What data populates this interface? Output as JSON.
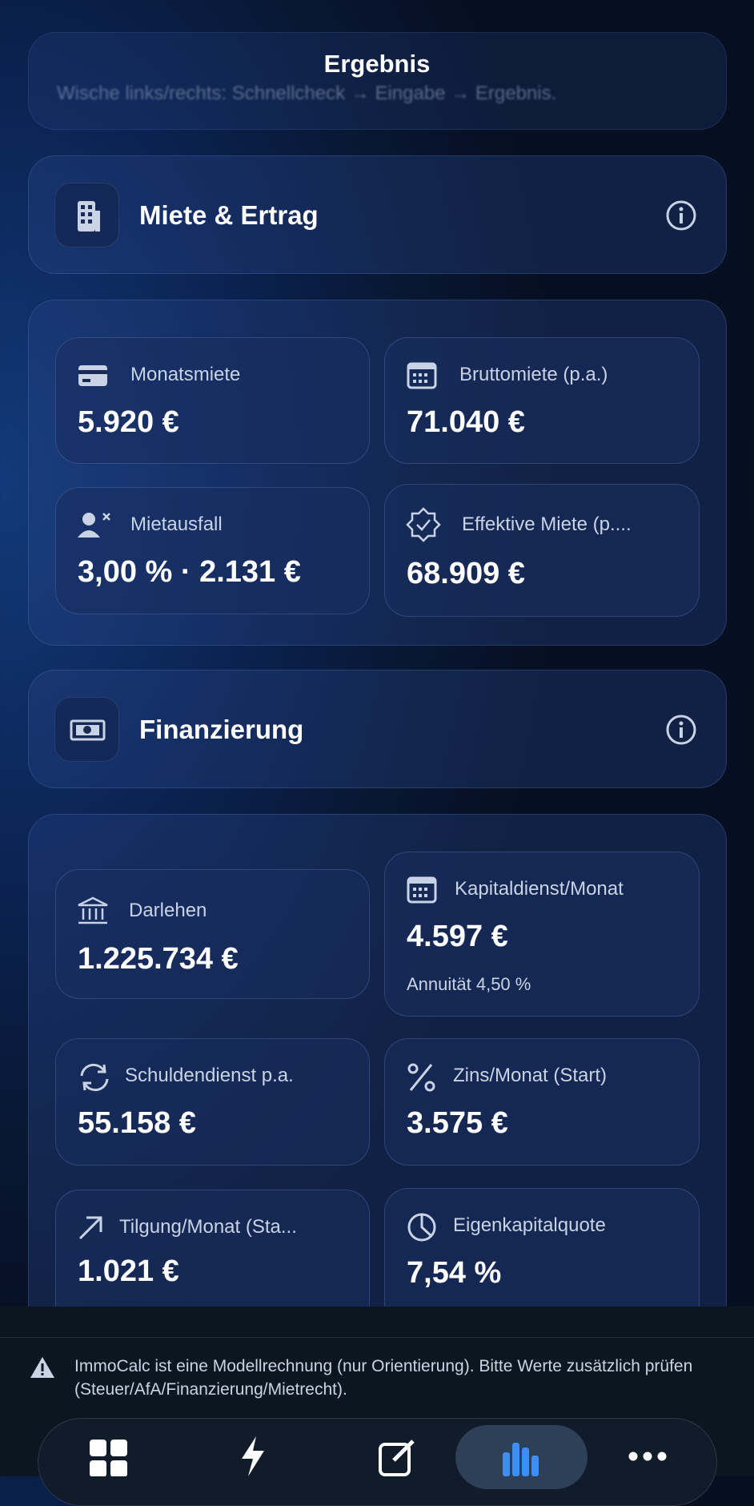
{
  "header": {
    "title": "Ergebnis",
    "hint": "Wische links/rechts: Schnellcheck → Eingabe → Ergebnis."
  },
  "sections": [
    {
      "title": "Miete & Ertrag",
      "tiles": [
        {
          "label": "Monatsmiete",
          "value": "5.920 €"
        },
        {
          "label": "Bruttomiete (p.a.)",
          "value": "71.040 €"
        },
        {
          "label": "Mietausfall",
          "value": "3,00 % · 2.131 €"
        },
        {
          "label": "Effektive Miete (p....",
          "value": "68.909 €"
        }
      ]
    },
    {
      "title": "Finanzierung",
      "tiles": [
        {
          "label": "Darlehen",
          "value": "1.225.734 €"
        },
        {
          "label": "Kapitaldienst/Monat",
          "value": "4.597 €",
          "sub": "Annuität 4,50 %"
        },
        {
          "label": "Schuldendienst p.a.",
          "value": "55.158 €"
        },
        {
          "label": "Zins/Monat (Start)",
          "value": "3.575 €"
        },
        {
          "label": "Tilgung/Monat (Sta...",
          "value": "1.021 €"
        },
        {
          "label": "Eigenkapitalquote",
          "value": "7,54 %"
        }
      ]
    }
  ],
  "disclaimer": "ImmoCalc ist eine Modellrechnung (nur Orientierung). Bitte Werte zusätzlich prüfen (Steuer/AfA/Finanzierung/Mietrecht)."
}
